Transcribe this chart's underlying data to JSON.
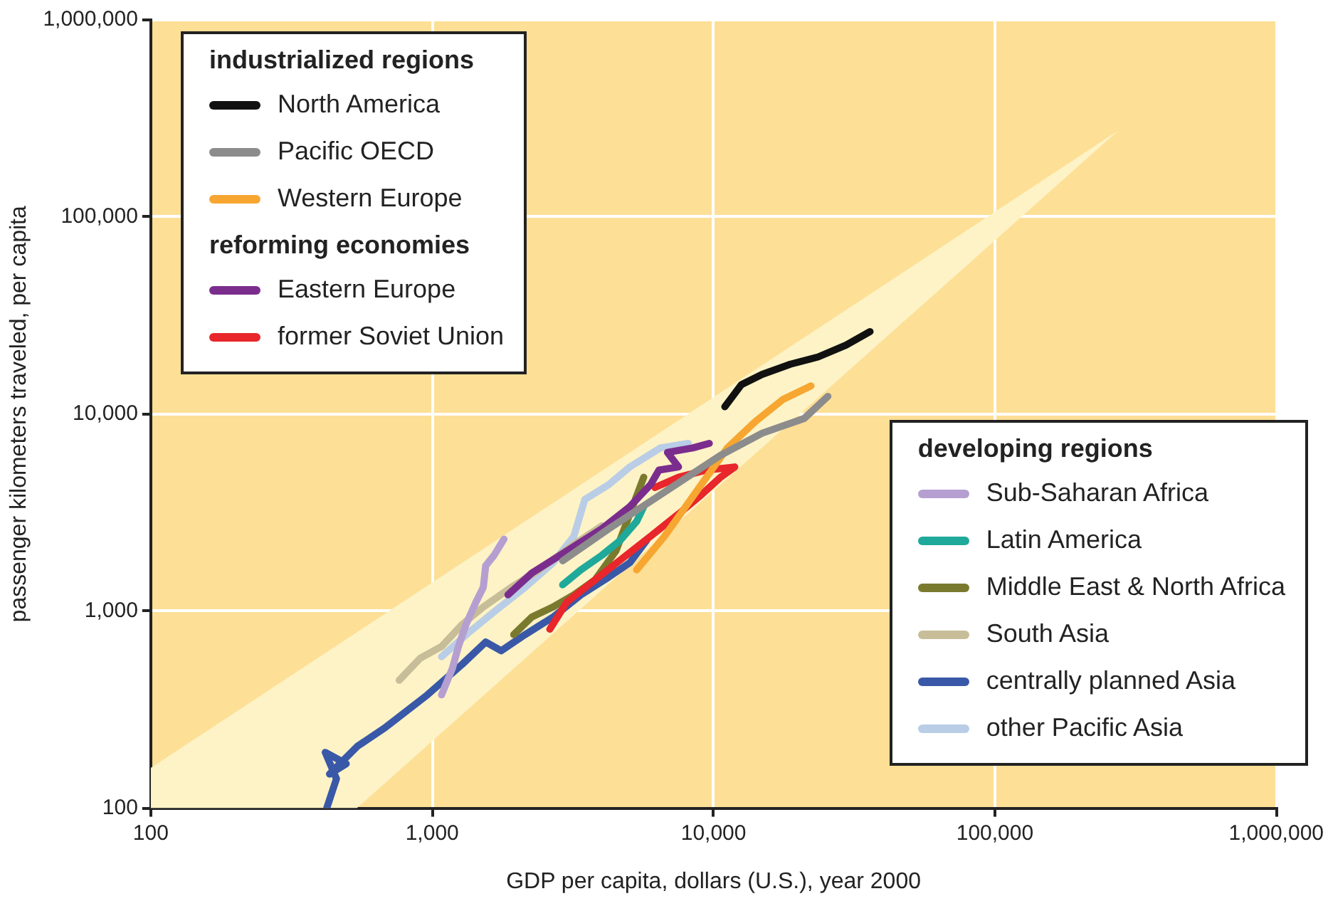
{
  "chart_data": {
    "type": "line",
    "xlabel": "GDP per capita, dollars (U.S.), year 2000",
    "ylabel": "passenger kilometers traveled, per capita",
    "log": "xy",
    "grid": true,
    "xlim": [
      100,
      1000000
    ],
    "ylim": [
      100,
      1000000
    ],
    "xticks": [
      {
        "value": 100,
        "label": "100"
      },
      {
        "value": 1000,
        "label": "1,000"
      },
      {
        "value": 10000,
        "label": "10,000"
      },
      {
        "value": 100000,
        "label": "100,000"
      },
      {
        "value": 1000000,
        "label": "1,000,000"
      }
    ],
    "yticks": [
      {
        "value": 100,
        "label": "100"
      },
      {
        "value": 1000,
        "label": "1,000"
      },
      {
        "value": 10000,
        "label": "10,000"
      },
      {
        "value": 100000,
        "label": "100,000"
      },
      {
        "value": 1000000,
        "label": "1,000,000"
      }
    ],
    "legend_title": [
      "industrialized regions",
      null,
      null,
      "reforming economies",
      null,
      "developing regions",
      null,
      null,
      null,
      null,
      null
    ],
    "legend": [
      "top left",
      "top left",
      "top left",
      "top left",
      "top left",
      "bottom right",
      "bottom right",
      "bottom right",
      "bottom right",
      "bottom right",
      "bottom right"
    ],
    "series": [
      {
        "type": "area",
        "color": "#fdf3c6",
        "x": [
          100,
          275000,
          540,
          100,
          100
        ],
        "values": [
          160,
          275000,
          100,
          100,
          160
        ]
      },
      {
        "name": "North America",
        "color": "#111111",
        "x": [
          10970,
          12560,
          14900,
          18750,
          23550,
          29600,
          36000
        ],
        "values": [
          10900,
          14100,
          15900,
          17900,
          19500,
          22400,
          26200
        ]
      },
      {
        "name": "Pacific OECD",
        "color": "#8c8c8c",
        "x": [
          2910,
          4250,
          6700,
          10600,
          14900,
          21000,
          25500
        ],
        "values": [
          1800,
          2620,
          4020,
          6180,
          8000,
          9500,
          12300
        ]
      },
      {
        "name": "Western Europe",
        "color": "#f7a631",
        "x": [
          5330,
          6700,
          7960,
          9440,
          11200,
          14100,
          17700,
          22200
        ],
        "values": [
          1620,
          2400,
          3390,
          4780,
          6730,
          9180,
          11900,
          13900
        ]
      },
      {
        "name": "Eastern Europe",
        "color": "#7b2d8e",
        "x": [
          1860,
          2260,
          3010,
          4010,
          5040,
          5980,
          6400,
          7510,
          6860,
          8440,
          9660
        ],
        "values": [
          1210,
          1560,
          2020,
          2620,
          3390,
          4390,
          5200,
          5390,
          6390,
          6730,
          7100
        ]
      },
      {
        "name": "former Soviet Union",
        "color": "#e8262b",
        "x": [
          2620,
          3010,
          3790,
          4760,
          5980,
          7510,
          8920,
          10600,
          11900,
          9440,
          7510,
          6190
        ],
        "values": [
          810,
          1110,
          1440,
          1860,
          2400,
          3110,
          3820,
          4780,
          5390,
          5200,
          4780,
          4240
        ]
      },
      {
        "name": "Sub-Saharan Africa",
        "color": "#b59fd1",
        "x": [
          1080,
          1180,
          1240,
          1320,
          1430,
          1520,
          1550,
          1660,
          1800
        ],
        "values": [
          376,
          512,
          662,
          857,
          1110,
          1320,
          1700,
          1920,
          2320
        ]
      },
      {
        "name": "Latin America",
        "color": "#1fa99a",
        "x": [
          2910,
          3380,
          4010,
          4650,
          5330,
          5650
        ],
        "values": [
          1360,
          1620,
          1920,
          2280,
          2850,
          3390
        ]
      },
      {
        "name": "Middle East & North Africa",
        "color": "#7a7a2e",
        "x": [
          1950,
          2260,
          2690,
          3190,
          3790,
          4500,
          5040,
          5650
        ],
        "values": [
          760,
          933,
          1050,
          1210,
          1440,
          2020,
          3110,
          4780
        ]
      },
      {
        "name": "South Asia",
        "color": "#c7bd98",
        "x": [
          764,
          907,
          1080,
          1280,
          1520,
          1910,
          2400,
          3120,
          4010
        ],
        "values": [
          446,
          577,
          662,
          857,
          1050,
          1320,
          1620,
          2130,
          2710
        ]
      },
      {
        "name": "centrally planned Asia",
        "color": "#3a58a8",
        "x": [
          422,
          457,
          417,
          495,
          432,
          542,
          682,
          962,
          1280,
          1550,
          1760,
          2140,
          2690,
          3380,
          4250,
          5040,
          5780
        ],
        "values": [
          100,
          141,
          192,
          168,
          149,
          206,
          257,
          376,
          538,
          697,
          629,
          760,
          933,
          1210,
          1490,
          1760,
          2280
        ]
      },
      {
        "name": "other Pacific Asia",
        "color": "#b9cde6",
        "x": [
          1080,
          1360,
          1700,
          2140,
          2690,
          3190,
          3490,
          4250,
          5040,
          6470,
          8140
        ],
        "values": [
          587,
          787,
          1020,
          1320,
          1760,
          2400,
          3690,
          4390,
          5390,
          6730,
          7100
        ]
      }
    ]
  }
}
